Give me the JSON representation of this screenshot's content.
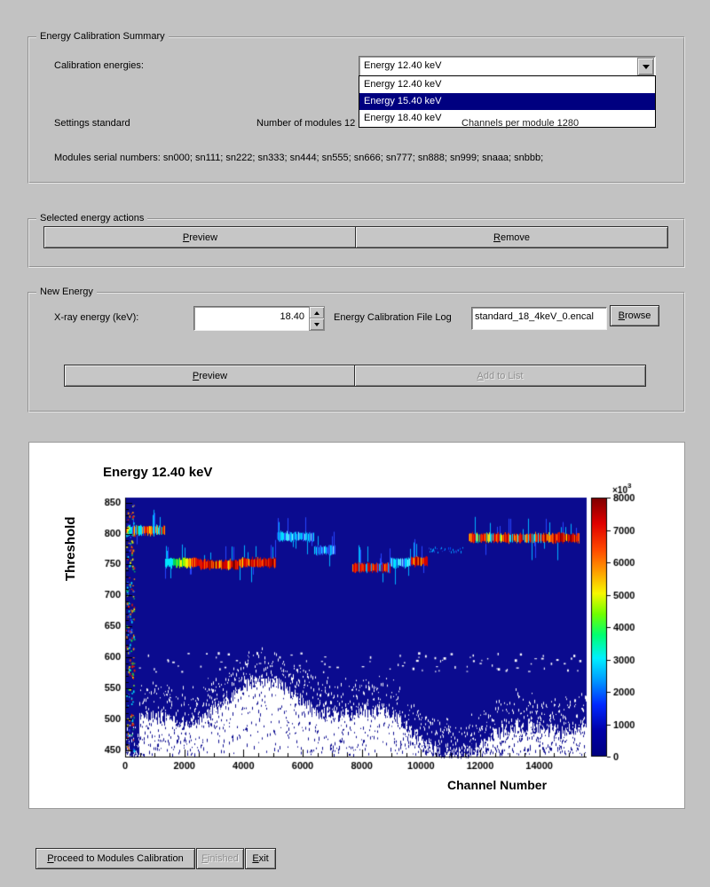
{
  "summary_group": {
    "title": "Energy Calibration Summary",
    "calibration_energies_label": "Calibration energies:",
    "combo_value": "Energy 12.40 keV",
    "options": [
      "Energy 12.40 keV",
      "Energy 15.40 keV",
      "Energy 18.40 keV"
    ],
    "highlighted_option_index": 1,
    "highlight_color": "#000080",
    "settings_label": "Settings standard",
    "modules_count_label": "Number of modules 12",
    "channels_label": "Channels per module 1280",
    "serials_label": "Modules serial numbers: sn000; sn111; sn222; sn333; sn444; sn555; sn666; sn777; sn888; sn999; snaaa; snbbb;"
  },
  "actions_group": {
    "title": "Selected energy actions",
    "preview_label": "Preview",
    "remove_label": "Remove"
  },
  "new_energy_group": {
    "title": "New Energy",
    "xray_label": "X-ray energy (keV):",
    "xray_value": "18.40",
    "file_log_label": "Energy Calibration File Log",
    "file_value": "standard_18_4keV_0.encal",
    "browse_label": "Browse",
    "preview_label": "Preview",
    "add_label": "Add to List"
  },
  "footer": {
    "proceed_label": "Proceed to Modules Calibration",
    "finished_label": "Finished",
    "exit_label": "Exit"
  },
  "chart_data": {
    "type": "heatmap",
    "title": "Energy 12.40 keV",
    "xlabel": "Channel Number",
    "ylabel": "Threshold",
    "x_range": [
      0,
      15600
    ],
    "y_range": [
      440,
      858
    ],
    "x_ticks": [
      0,
      2000,
      4000,
      6000,
      8000,
      10000,
      12000,
      14000
    ],
    "y_ticks": [
      450,
      500,
      550,
      600,
      650,
      700,
      750,
      800,
      850
    ],
    "background_color": "#0b0b8f",
    "colorbar": {
      "max": 8000,
      "ticks": [
        0,
        1000,
        2000,
        3000,
        4000,
        5000,
        6000,
        7000,
        8000
      ],
      "multiplier_base": "×10",
      "multiplier_exp": "3",
      "stops": [
        [
          0,
          "#000080"
        ],
        [
          0.1,
          "#0000a8"
        ],
        [
          0.2,
          "#0028ff"
        ],
        [
          0.3,
          "#00a0ff"
        ],
        [
          0.38,
          "#00f0ff"
        ],
        [
          0.47,
          "#00ff70"
        ],
        [
          0.55,
          "#70ff00"
        ],
        [
          0.63,
          "#f8f800"
        ],
        [
          0.72,
          "#ff9800"
        ],
        [
          0.8,
          "#ff4800"
        ],
        [
          0.9,
          "#e00000"
        ],
        [
          1,
          "#7d0000"
        ]
      ]
    },
    "module_bands": [
      {
        "ch0": 0,
        "ch1": 1350,
        "threshold": 805,
        "palette": "mixed"
      },
      {
        "ch0": 1350,
        "ch1": 2560,
        "threshold": 753,
        "palette": "rainbow"
      },
      {
        "ch0": 2560,
        "ch1": 3840,
        "threshold": 750,
        "palette": "red"
      },
      {
        "ch0": 3840,
        "ch1": 5100,
        "threshold": 753,
        "palette": "red"
      },
      {
        "ch0": 5120,
        "ch1": 6400,
        "threshold": 795,
        "palette": "cyan"
      },
      {
        "ch0": 6400,
        "ch1": 7100,
        "threshold": 773,
        "palette": "cyan"
      },
      {
        "ch0": 7680,
        "ch1": 8960,
        "threshold": 745,
        "palette": "redblue"
      },
      {
        "ch0": 8960,
        "ch1": 9650,
        "threshold": 753,
        "palette": "cyan"
      },
      {
        "ch0": 9650,
        "ch1": 10240,
        "threshold": 755,
        "palette": "red"
      },
      {
        "ch0": 10240,
        "ch1": 11520,
        "threshold": 775,
        "palette": "sparse"
      },
      {
        "ch0": 11600,
        "ch1": 12800,
        "threshold": 793,
        "palette": "redmix"
      },
      {
        "ch0": 12800,
        "ch1": 14080,
        "threshold": 793,
        "palette": "redcyan"
      },
      {
        "ch0": 14080,
        "ch1": 15360,
        "threshold": 793,
        "palette": "red"
      }
    ]
  }
}
